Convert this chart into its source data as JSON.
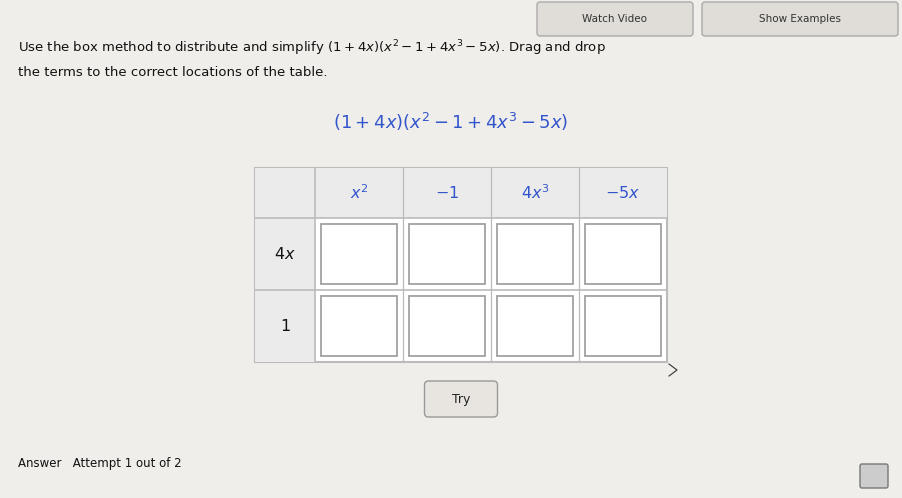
{
  "title_line1": "Use the box method to distribute and simplify $(1+4x)(x^2-1+4x^3-5x)$. Drag and drop",
  "title_line2": "the terms to the correct locations of the table.",
  "expression": "$(1+4x)(x^2-1+4x^3-5x)$",
  "col_headers": [
    "$x^2$",
    "$-1$",
    "$4x^3$",
    "$-5x$"
  ],
  "row_headers": [
    "$4x$",
    "$1$"
  ],
  "button_text": "Try",
  "answer_text": "Answer   Attempt 1 out of 2",
  "bg_color": "#e8e6e0",
  "page_bg": "#f0eeea",
  "table_bg": "#ffffff",
  "cell_bg": "#ffffff",
  "cell_inner_bg": "#f5f5f5",
  "header_color": "#3355cc",
  "text_color": "#111111",
  "border_color": "#bbbbbb",
  "cell_border_color": "#999999",
  "top_btn_bg": "#e0ddd8",
  "top_btn_border": "#aaaaaa"
}
